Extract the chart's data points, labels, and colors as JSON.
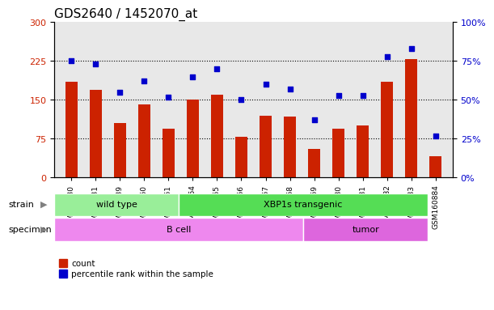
{
  "title": "GDS2640 / 1452070_at",
  "categories": [
    "GSM160730",
    "GSM160731",
    "GSM160739",
    "GSM160860",
    "GSM160861",
    "GSM160864",
    "GSM160865",
    "GSM160866",
    "GSM160867",
    "GSM160868",
    "GSM160869",
    "GSM160880",
    "GSM160881",
    "GSM160882",
    "GSM160883",
    "GSM160884"
  ],
  "counts": [
    185,
    170,
    105,
    142,
    95,
    150,
    160,
    78,
    120,
    118,
    55,
    95,
    100,
    185,
    228,
    42
  ],
  "percentiles": [
    75,
    73,
    55,
    62,
    52,
    65,
    70,
    50,
    60,
    57,
    37,
    53,
    53,
    78,
    83,
    27
  ],
  "bar_color": "#cc2200",
  "dot_color": "#0000cc",
  "ylim_left": [
    0,
    300
  ],
  "ylim_right": [
    0,
    100
  ],
  "yticks_left": [
    0,
    75,
    150,
    225,
    300
  ],
  "yticks_right": [
    0,
    25,
    50,
    75,
    100
  ],
  "ytick_labels_right": [
    "0%",
    "25%",
    "50%",
    "75%",
    "100%"
  ],
  "hlines": [
    75,
    150,
    225
  ],
  "strain_groups": [
    {
      "label": "wild type",
      "start": 0,
      "end": 5,
      "color": "#99ee99"
    },
    {
      "label": "XBP1s transgenic",
      "start": 5,
      "end": 15,
      "color": "#55dd55"
    }
  ],
  "specimen_groups": [
    {
      "label": "B cell",
      "start": 0,
      "end": 10,
      "color": "#ee88ee"
    },
    {
      "label": "tumor",
      "start": 10,
      "end": 15,
      "color": "#dd66dd"
    }
  ],
  "legend_items": [
    {
      "label": "count",
      "color": "#cc2200",
      "marker": "s"
    },
    {
      "label": "percentile rank within the sample",
      "color": "#0000cc",
      "marker": "s"
    }
  ],
  "bg_color": "#e8e8e8",
  "title_fontsize": 11,
  "axis_label_color_left": "#cc2200",
  "axis_label_color_right": "#0000cc"
}
